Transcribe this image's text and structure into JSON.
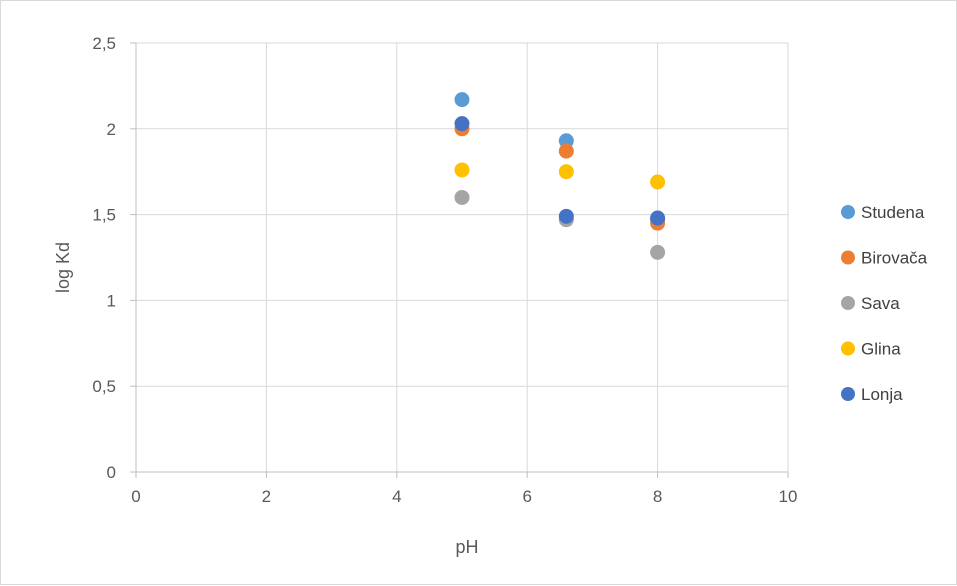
{
  "chart_data": {
    "type": "scatter",
    "title": "",
    "xlabel": "pH",
    "ylabel": "log Kd",
    "xlim": [
      0,
      10
    ],
    "ylim": [
      0,
      2.5
    ],
    "x_ticks": [
      "0",
      "2",
      "4",
      "6",
      "8",
      "10"
    ],
    "y_ticks": [
      "0",
      "0,5",
      "1",
      "1,5",
      "2",
      "2,5"
    ],
    "grid": true,
    "legend_position": "right",
    "series": [
      {
        "name": "Studena",
        "color": "#5B9BD5",
        "points": [
          [
            5,
            2.17
          ],
          [
            6.6,
            1.93
          ],
          [
            8,
            1.47
          ]
        ]
      },
      {
        "name": "Birovača",
        "color": "#ED7D31",
        "points": [
          [
            5,
            2.0
          ],
          [
            6.6,
            1.87
          ],
          [
            8,
            1.45
          ]
        ]
      },
      {
        "name": "Sava",
        "color": "#A5A5A5",
        "points": [
          [
            5,
            1.6
          ],
          [
            6.6,
            1.47
          ],
          [
            8,
            1.28
          ]
        ]
      },
      {
        "name": "Glina",
        "color": "#FFC000",
        "points": [
          [
            5,
            1.76
          ],
          [
            6.6,
            1.75
          ],
          [
            8,
            1.69
          ]
        ]
      },
      {
        "name": "Lonja",
        "color": "#4472C4",
        "points": [
          [
            5,
            2.03
          ],
          [
            6.6,
            1.49
          ],
          [
            8,
            1.48
          ]
        ]
      }
    ]
  }
}
